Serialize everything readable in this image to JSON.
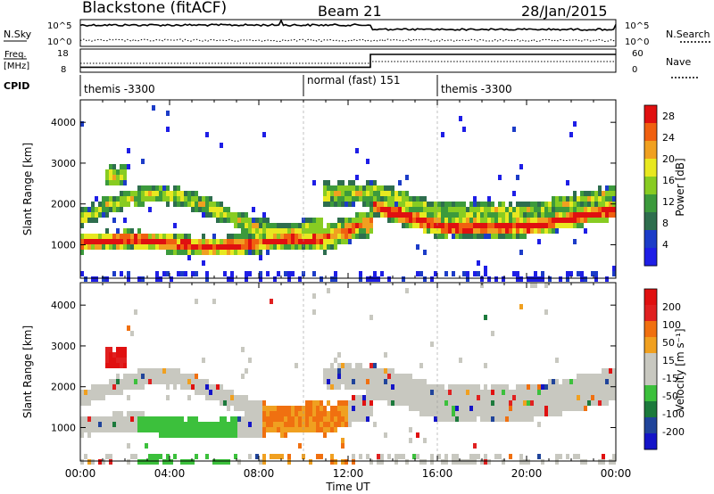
{
  "header": {
    "station": "Blackstone (fitACF)",
    "beam": "Beam 21",
    "date": "28/Jan/2015"
  },
  "top_panels": {
    "nsky_label": "N.Sky",
    "nsky_ticks": [
      "10^5",
      "10^0"
    ],
    "nsearch_label": "N.Search",
    "nsearch_ticks": [
      "10^5",
      "10^0"
    ],
    "freq_label_line1": "Freq.",
    "freq_label_line2": "[MHz]",
    "freq_ticks": [
      "18",
      "8"
    ],
    "nave_label": "Nave",
    "nave_ticks": [
      "60",
      "0"
    ],
    "cpid_label": "CPID"
  },
  "cpid_segments": [
    {
      "label": "themis -3300",
      "start_hour": 0,
      "end_hour": 10
    },
    {
      "label": "normal (fast) 151",
      "start_hour": 10,
      "end_hour": 16
    },
    {
      "label": "themis -3300",
      "start_hour": 16,
      "end_hour": 24
    }
  ],
  "freq_step": {
    "before_mhz": 10,
    "after_mhz": 18,
    "step_hour": 13
  },
  "colors": {
    "power": [
      "#1e1ee6",
      "#1c3cc8",
      "#2e6e4e",
      "#3c9a3c",
      "#88cc22",
      "#e8e820",
      "#f0a020",
      "#f06010",
      "#e01010"
    ],
    "velocity": [
      "#1414c8",
      "#20449a",
      "#1c7a3c",
      "#3cc03c",
      "#c8c8c0",
      "#c8c8c0",
      "#f0a020",
      "#f07010",
      "#e02020",
      "#e01010"
    ]
  },
  "chart_data": [
    {
      "type": "heatmap",
      "title": "Power",
      "xlabel": "Time UT",
      "ylabel": "Slant Range [km]",
      "x_ticks": [
        "00:00",
        "04:00",
        "08:00",
        "12:00",
        "16:00",
        "20:00",
        "00:00"
      ],
      "y_ticks": [
        "1000",
        "2000",
        "3000",
        "4000"
      ],
      "xlim_hours": [
        0,
        24
      ],
      "ylim_km": [
        180,
        4550
      ],
      "colorbar": {
        "label": "Power [dB]",
        "ticks": [
          "4",
          "8",
          "12",
          "16",
          "20",
          "24",
          "28"
        ],
        "range": [
          0,
          30
        ]
      }
    },
    {
      "type": "heatmap",
      "title": "Velocity",
      "xlabel": "Time UT",
      "ylabel": "Slant Range [km]",
      "x_ticks": [
        "00:00",
        "04:00",
        "08:00",
        "12:00",
        "16:00",
        "20:00",
        "00:00"
      ],
      "y_ticks": [
        "1000",
        "2000",
        "3000",
        "4000"
      ],
      "xlim_hours": [
        0,
        24
      ],
      "ylim_km": [
        180,
        4550
      ],
      "colorbar": {
        "label": "Velocity [m s⁻¹]",
        "ticks": [
          "200",
          "100",
          "50",
          "15",
          "-15",
          "-50",
          "-100",
          "-200"
        ],
        "range": [
          -250,
          250
        ]
      }
    }
  ]
}
